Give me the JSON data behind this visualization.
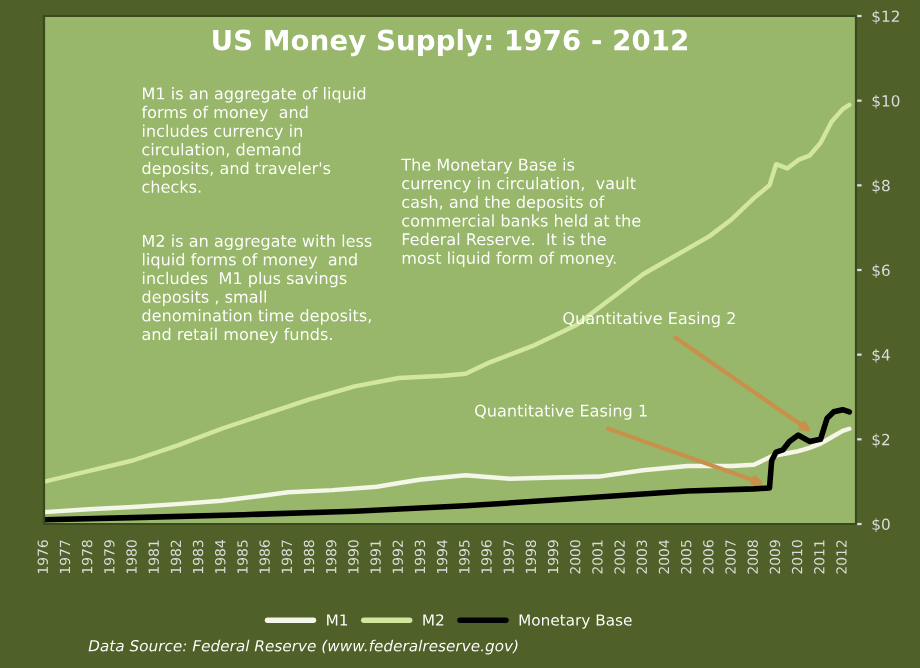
{
  "chart_data": {
    "type": "line",
    "title": "US Money Supply: 1976 - 2012",
    "series": [
      {
        "name": "M1",
        "color": "#f4f6e8",
        "x": [
          1976,
          1978,
          1980,
          1982,
          1984,
          1986,
          1987,
          1989,
          1991,
          1992,
          1993,
          1995,
          1997,
          1999,
          2001,
          2003,
          2005,
          2007,
          2008,
          2008.8,
          2009.5,
          2010,
          2010.5,
          2011,
          2011.5,
          2012,
          2012.3
        ],
        "values": [
          0.28,
          0.35,
          0.4,
          0.47,
          0.55,
          0.68,
          0.75,
          0.8,
          0.88,
          0.97,
          1.05,
          1.15,
          1.07,
          1.1,
          1.12,
          1.27,
          1.37,
          1.37,
          1.4,
          1.6,
          1.67,
          1.72,
          1.8,
          1.9,
          2.05,
          2.2,
          2.25
        ]
      },
      {
        "name": "M2",
        "color": "#d2e6a0",
        "x": [
          1976,
          1978,
          1980,
          1982,
          1984,
          1986,
          1988,
          1990,
          1992,
          1994,
          1995,
          1996,
          1998,
          2000,
          2001,
          2002,
          2003,
          2004,
          2005,
          2006,
          2007,
          2008,
          2008.7,
          2009,
          2009.5,
          2010,
          2010.5,
          2011,
          2011.5,
          2012,
          2012.3
        ],
        "values": [
          1.0,
          1.25,
          1.5,
          1.85,
          2.25,
          2.6,
          2.95,
          3.25,
          3.45,
          3.5,
          3.55,
          3.8,
          4.2,
          4.7,
          5.1,
          5.5,
          5.9,
          6.2,
          6.5,
          6.8,
          7.2,
          7.7,
          8.0,
          8.5,
          8.4,
          8.6,
          8.7,
          9.0,
          9.5,
          9.8,
          9.9
        ]
      },
      {
        "name": "Monetary Base",
        "color": "#000000",
        "x": [
          1976,
          1980,
          1985,
          1990,
          1995,
          2000,
          2005,
          2008,
          2008.7,
          2008.8,
          2009,
          2009.3,
          2009.6,
          2010,
          2010.5,
          2011,
          2011.3,
          2011.6,
          2012,
          2012.3
        ],
        "values": [
          0.1,
          0.15,
          0.22,
          0.3,
          0.43,
          0.6,
          0.78,
          0.83,
          0.85,
          1.5,
          1.7,
          1.75,
          1.95,
          2.1,
          1.95,
          2.0,
          2.5,
          2.65,
          2.7,
          2.65
        ]
      }
    ],
    "xlim": [
      1976,
      2012.6
    ],
    "xticks": [
      1976,
      1977,
      1978,
      1979,
      1980,
      1981,
      1982,
      1983,
      1984,
      1985,
      1986,
      1987,
      1988,
      1989,
      1990,
      1991,
      1992,
      1993,
      1994,
      1995,
      1996,
      1997,
      1998,
      1999,
      2000,
      2001,
      2002,
      2003,
      2004,
      2005,
      2006,
      2007,
      2008,
      2009,
      2010,
      2011,
      2012
    ],
    "ylim": [
      0,
      12
    ],
    "yticks": [
      {
        "value": 0,
        "label": "$0"
      },
      {
        "value": 2,
        "label": "$2"
      },
      {
        "value": 4,
        "label": "$4"
      },
      {
        "value": 6,
        "label": "$6"
      },
      {
        "value": 8,
        "label": "$8"
      },
      {
        "value": 10,
        "label": "$10"
      },
      {
        "value": 12,
        "label": "$12"
      }
    ],
    "grid": false,
    "legend": "bottom",
    "marker": "none",
    "line_style": "solid",
    "annotations": [
      "M1 is an aggregate of liquid\nforms of money  and\nincludes currency in\ncirculation, demand\ndeposits, and traveler's\nchecks.",
      "M2 is an aggregate with less\nliquid forms of money  and\nincludes  M1 plus savings\ndeposits , small\ndenomination time deposits,\nand retail money funds.",
      "The Monetary Base is\ncurrency in circulation,  vault\ncash, and the deposits of\ncommercial banks held at the\nFederal Reserve.  It is the\nmost liquid form of money.",
      {
        "text": "Quantitative Easing 1",
        "x": 2008.7,
        "y": 0.9
      },
      {
        "text": "Quantitative Easing 2",
        "x": 2010.8,
        "y": 2.1
      },
      "Data Source: Federal Reserve (www.federalreserve.gov)"
    ]
  }
}
